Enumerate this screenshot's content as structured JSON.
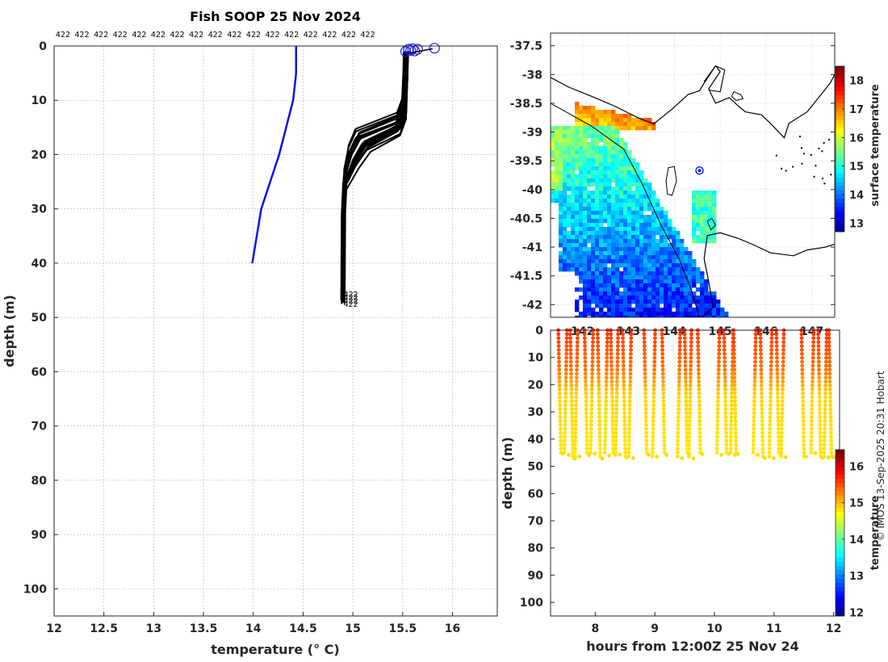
{
  "title": "Fish SOOP 25 Nov 2024",
  "credit": "© IMOS 13-Sep-2025 20:31 Hobart",
  "colors": {
    "climatology": "#0a14dc",
    "profiles": "#000000",
    "marker": "#1a1aff",
    "grid": "#b4b4b4",
    "land": "#ffffff",
    "coast": "#000000"
  },
  "chart_data": [
    {
      "type": "line",
      "name": "temperature-profiles",
      "xlabel": "temperature (° C)",
      "ylabel": "depth (m)",
      "xlim": [
        12,
        16.45
      ],
      "ylim": [
        105,
        0
      ],
      "xticks": [
        12,
        12.5,
        13,
        13.5,
        14,
        14.5,
        15,
        15.5,
        16
      ],
      "xtick_labels": [
        "12",
        "12.5",
        "13",
        "13.5",
        "14",
        "14.5",
        "15",
        "15.5",
        "16"
      ],
      "yticks": [
        0,
        10,
        20,
        30,
        40,
        50,
        60,
        70,
        80,
        90,
        100
      ],
      "ytick_labels": [
        "0",
        "10",
        "20",
        "30",
        "40",
        "50",
        "60",
        "70",
        "80",
        "90",
        "100"
      ],
      "grid": true,
      "top_labels": [
        "422",
        "422",
        "422",
        "422",
        "422",
        "422",
        "422",
        "422",
        "422",
        "422",
        "422",
        "422",
        "422",
        "422",
        "422",
        "422",
        "422"
      ],
      "bottom_label": "422",
      "series": [
        {
          "name": "climatology",
          "depth": [
            0,
            5,
            10,
            20,
            30,
            40
          ],
          "temperature": [
            14.43,
            14.43,
            14.4,
            14.26,
            14.08,
            13.99
          ]
        },
        {
          "name": "profiles",
          "count": 24,
          "surface_temp": [
            15.5,
            15.65
          ],
          "mixed_layer_depth": [
            13,
            16
          ],
          "bottom_temp": [
            14.88,
            14.92
          ],
          "max_depth": [
            45.5,
            47.7
          ]
        }
      ]
    },
    {
      "type": "heatmap",
      "name": "surface-temperature-map",
      "xlim": [
        141.3,
        147.5
      ],
      "ylim": [
        -42.22,
        -37.28
      ],
      "yticks": [
        -37.5,
        -38,
        -38.5,
        -39,
        -39.5,
        -40,
        -40.5,
        -41,
        -41.5,
        -42
      ],
      "ytick_labels": [
        "-37.5",
        "-38",
        "-38.5",
        "-39",
        "-39.5",
        "-40",
        "-40.5",
        "-41",
        "-41.5",
        "-42"
      ],
      "xtick_labels": [
        "142",
        "143",
        "144",
        "145",
        "146",
        "147"
      ],
      "colorbar": {
        "label": "surface temperature",
        "range": [
          12.7,
          18.5
        ],
        "ticks": [
          13,
          14,
          15,
          16,
          17,
          18
        ],
        "tick_labels": [
          "13",
          "14",
          "15",
          "16",
          "17",
          "18"
        ]
      },
      "track_point": {
        "lon": 144.55,
        "lat": -39.67
      }
    },
    {
      "type": "scatter",
      "name": "depth-time-section",
      "xlabel": "hours from 12:00Z 25 Nov 24",
      "ylabel": "depth (m)",
      "xlim": [
        7.25,
        12.1
      ],
      "ylim": [
        105,
        0
      ],
      "xticks": [
        8,
        9,
        10,
        11,
        12
      ],
      "xtick_labels": [
        "8",
        "9",
        "10",
        "11",
        "12"
      ],
      "yticks": [
        0,
        10,
        20,
        30,
        40,
        50,
        60,
        70,
        80,
        90,
        100
      ],
      "ytick_labels": [
        "0",
        "10",
        "20",
        "30",
        "40",
        "50",
        "60",
        "70",
        "80",
        "90",
        "100"
      ],
      "colorbar": {
        "label": "temperature",
        "range": [
          11.9,
          16.45
        ],
        "ticks": [
          12,
          13,
          14,
          15,
          16
        ],
        "tick_labels": [
          "12",
          "13",
          "14",
          "15",
          "16"
        ]
      },
      "profile_hours": [
        7.38,
        7.48,
        7.58,
        7.66,
        7.82,
        7.92,
        8.04,
        8.16,
        8.26,
        8.34,
        8.46,
        8.56,
        8.82,
        8.96,
        9.12,
        9.38,
        9.5,
        9.57,
        9.72,
        10.04,
        10.16,
        10.27,
        10.32,
        10.65,
        10.77,
        10.92,
        11.04,
        11.12,
        11.46,
        11.62,
        11.74,
        11.84,
        11.92
      ]
    }
  ]
}
